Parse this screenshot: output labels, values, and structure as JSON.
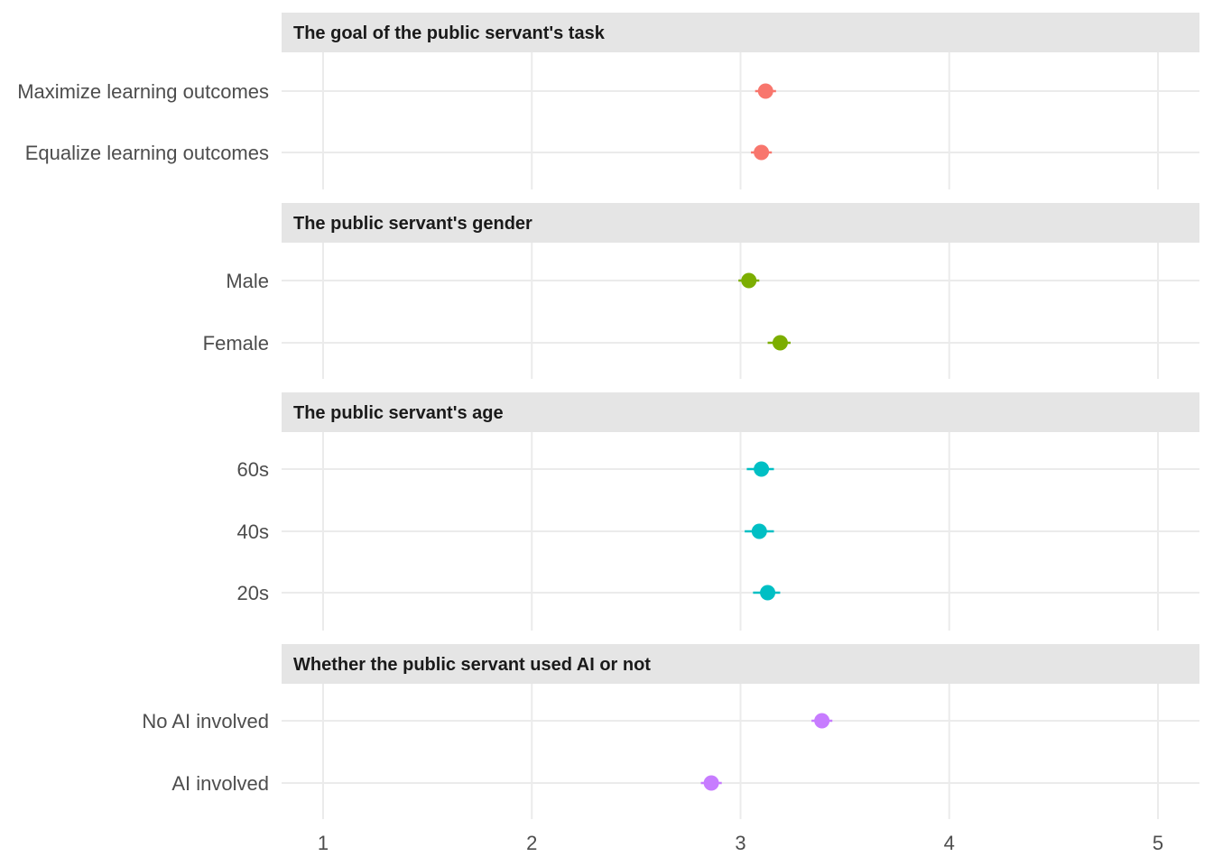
{
  "chart_data": {
    "type": "scatter",
    "subtype": "dot-whisker faceted",
    "xlim": [
      0.85,
      5.2
    ],
    "x_ticks": [
      1,
      2,
      3,
      4,
      5
    ],
    "grid": true,
    "facets": [
      {
        "title": "The goal of the public servant's task",
        "color": "#F8766D",
        "items": [
          {
            "label": "Maximize learning outcomes",
            "estimate": 3.12,
            "lower": 3.07,
            "upper": 3.17
          },
          {
            "label": "Equalize learning outcomes",
            "estimate": 3.1,
            "lower": 3.05,
            "upper": 3.15
          }
        ]
      },
      {
        "title": "The public servant's gender",
        "color": "#7CAE00",
        "items": [
          {
            "label": "Male",
            "estimate": 3.04,
            "lower": 2.99,
            "upper": 3.09
          },
          {
            "label": "Female",
            "estimate": 3.19,
            "lower": 3.13,
            "upper": 3.24
          }
        ]
      },
      {
        "title": "The public servant's age",
        "color": "#00BFC4",
        "items": [
          {
            "label": "60s",
            "estimate": 3.1,
            "lower": 3.03,
            "upper": 3.16
          },
          {
            "label": "40s",
            "estimate": 3.09,
            "lower": 3.02,
            "upper": 3.16
          },
          {
            "label": "20s",
            "estimate": 3.13,
            "lower": 3.06,
            "upper": 3.19
          }
        ]
      },
      {
        "title": "Whether the public servant used AI or not",
        "color": "#C77CFF",
        "items": [
          {
            "label": "No AI involved",
            "estimate": 3.39,
            "lower": 3.34,
            "upper": 3.44
          },
          {
            "label": "AI involved",
            "estimate": 2.86,
            "lower": 2.81,
            "upper": 2.91
          }
        ]
      }
    ]
  }
}
